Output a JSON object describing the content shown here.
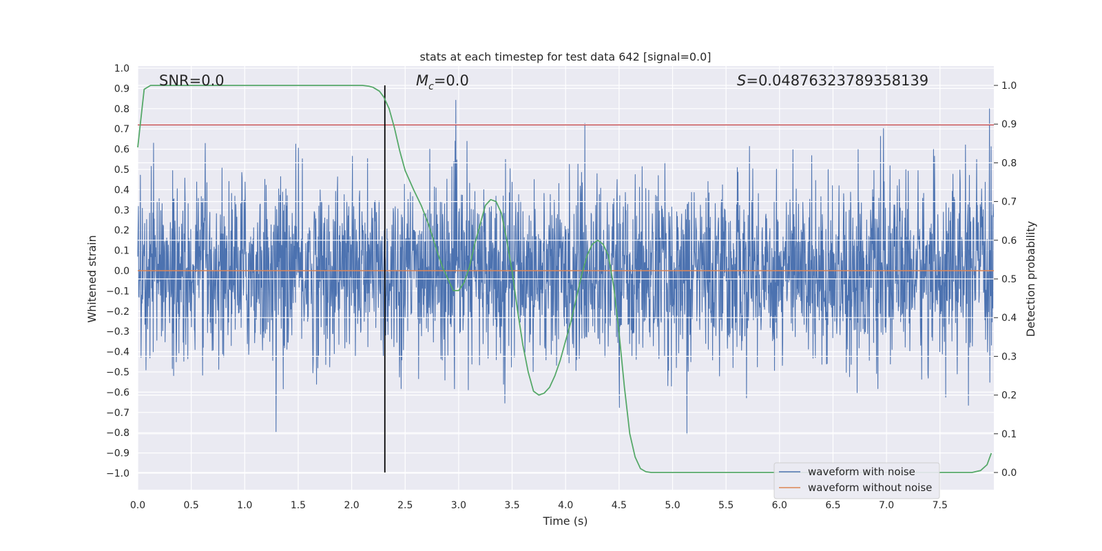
{
  "chart_data": {
    "type": "line",
    "title": "stats at each timestep for test data 642 [signal=0.0]",
    "xlabel": "Time (s)",
    "ylabel": "Whitened strain",
    "ylabel_right": "Detection probability",
    "xlim": [
      0.0,
      8.0
    ],
    "ylim": [
      -1.0,
      1.0
    ],
    "ylim_right": [
      -0.05,
      1.05
    ],
    "x_ticks": [
      "0.0",
      "0.5",
      "1.0",
      "1.5",
      "2.0",
      "2.5",
      "3.0",
      "3.5",
      "4.0",
      "4.5",
      "5.0",
      "5.5",
      "6.0",
      "6.5",
      "7.0",
      "7.5"
    ],
    "y_ticks": [
      "1.0",
      "0.9",
      "0.8",
      "0.7",
      "0.6",
      "0.5",
      "0.4",
      "0.3",
      "0.2",
      "0.1",
      "0.0",
      "-0.1",
      "-0.2",
      "-0.3",
      "-0.4",
      "-0.5",
      "-0.6",
      "-0.7",
      "-0.8",
      "-0.9",
      "-1.0"
    ],
    "y_ticks_right": [
      "1.0",
      "0.9",
      "0.8",
      "0.7",
      "0.6",
      "0.5",
      "0.4",
      "0.3",
      "0.2",
      "0.1",
      "0.0"
    ],
    "grid": true,
    "annotations": {
      "snr": "SNR=0.0",
      "mc_symbol": "M",
      "mc_subscript": "c",
      "mc_value": "=0.0",
      "s_symbol": "S",
      "s_value": "=0.04876323789358139"
    },
    "threshold_y": 0.72,
    "marker_x": 2.31,
    "noise_envelope_seed": 642,
    "legend": {
      "position": "lower-right",
      "entries": [
        "waveform with noise",
        "waveform without noise"
      ]
    },
    "colors": {
      "noisy": "#4c72b0",
      "clean": "#dd8452",
      "probability": "#55a868",
      "threshold": "#c44e52",
      "marker": "#000000",
      "background": "#eaeaf2"
    },
    "series": [
      {
        "name": "waveform with noise",
        "axis": "left",
        "noise_std": 0.22,
        "x_range": [
          0.0,
          8.0
        ]
      },
      {
        "name": "waveform without noise",
        "axis": "left",
        "x": [
          0.0,
          8.0
        ],
        "y": [
          0.0,
          0.0
        ]
      },
      {
        "axis": "right",
        "x": [
          0.0,
          0.06,
          0.12,
          0.2,
          0.4,
          0.8,
          1.2,
          1.6,
          2.0,
          2.1,
          2.16,
          2.2,
          2.26,
          2.3,
          2.35,
          2.4,
          2.45,
          2.5,
          2.58,
          2.65,
          2.72,
          2.8,
          2.85,
          2.9,
          2.95,
          3.0,
          3.05,
          3.1,
          3.15,
          3.2,
          3.25,
          3.3,
          3.35,
          3.4,
          3.45,
          3.5,
          3.55,
          3.6,
          3.65,
          3.7,
          3.75,
          3.8,
          3.85,
          3.9,
          3.95,
          4.0,
          4.05,
          4.1,
          4.15,
          4.2,
          4.25,
          4.3,
          4.35,
          4.4,
          4.45,
          4.5,
          4.55,
          4.6,
          4.65,
          4.7,
          4.75,
          4.8,
          4.85,
          4.9,
          5.0,
          5.5,
          6.0,
          6.5,
          7.0,
          7.5,
          7.7,
          7.8,
          7.88,
          7.94,
          7.98
        ],
        "y": [
          0.84,
          0.99,
          1.0,
          1.0,
          1.0,
          1.0,
          1.0,
          1.0,
          1.0,
          1.0,
          0.998,
          0.995,
          0.985,
          0.97,
          0.94,
          0.89,
          0.83,
          0.78,
          0.73,
          0.69,
          0.64,
          0.57,
          0.53,
          0.5,
          0.47,
          0.47,
          0.49,
          0.53,
          0.59,
          0.64,
          0.69,
          0.705,
          0.7,
          0.67,
          0.6,
          0.52,
          0.42,
          0.33,
          0.26,
          0.21,
          0.2,
          0.205,
          0.22,
          0.25,
          0.29,
          0.34,
          0.39,
          0.45,
          0.51,
          0.56,
          0.59,
          0.6,
          0.59,
          0.56,
          0.48,
          0.36,
          0.22,
          0.1,
          0.04,
          0.01,
          0.002,
          0.0,
          0.0,
          0.0,
          0.0,
          0.0,
          0.0,
          0.0,
          0.0,
          0.0,
          0.0,
          0.0,
          0.005,
          0.02,
          0.05
        ]
      }
    ]
  }
}
